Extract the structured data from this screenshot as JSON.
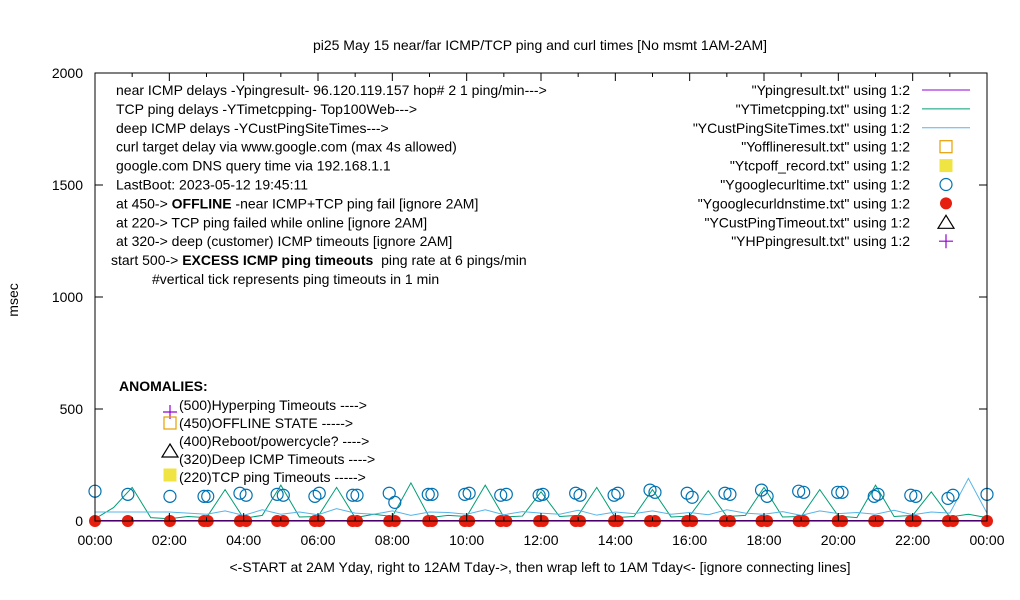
{
  "chart_data": {
    "type": "line",
    "title": "pi25 May 15  near/far ICMP/TCP ping and curl times [No msmt 1AM-2AM]",
    "xlabel": "<-START at 2AM Yday, right to 12AM Tday->, then wrap left to 1AM Tday<- [ignore connecting lines]",
    "ylabel": "msec",
    "xlim": [
      "00:00",
      "24:00"
    ],
    "ylim": [
      0,
      2000
    ],
    "x_ticks": [
      "00:00",
      "02:00",
      "04:00",
      "06:00",
      "08:00",
      "10:00",
      "12:00",
      "14:00",
      "16:00",
      "18:00",
      "20:00",
      "22:00",
      "00:00"
    ],
    "y_ticks": [
      "0",
      "500",
      "1000",
      "1500",
      "2000"
    ],
    "grid": false,
    "legend_position": "top-right",
    "notes": [
      [
        {
          "text": "near ICMP delays -Ypingresult- 96.120.119.157 hop# 2 1 ping/min--->"
        }
      ],
      [
        {
          "text": "TCP ping delays -YTimetcpping- Top100Web--->"
        }
      ],
      [
        {
          "text": "deep ICMP delays -YCustPingSiteTimes--->"
        }
      ],
      [
        {
          "text": "curl target delay via www.google.com (max 4s allowed)"
        }
      ],
      [
        {
          "text": "google.com DNS query time via 192.168.1.1"
        }
      ],
      [
        {
          "text": "LastBoot: 2023-05-12 19:45:11"
        }
      ],
      [
        {
          "text": "at 450-> "
        },
        {
          "text": "OFFLINE",
          "bold": true
        },
        {
          "text": " -near ICMP+TCP ping fail [ignore 2AM]"
        }
      ],
      [
        {
          "text": "at 220-> TCP ping failed while online [ignore 2AM]"
        }
      ],
      [
        {
          "text": "at 320-> deep (customer) ICMP timeouts [ignore 2AM]"
        }
      ],
      [
        {
          "text": "start 500-> "
        },
        {
          "text": "EXCESS ICMP ping timeouts",
          "bold": true
        },
        {
          "text": "  ping rate at 6 pings/min"
        }
      ],
      [
        {
          "text": "#vertical tick represents ping timeouts in 1 min"
        }
      ]
    ],
    "anomalies": {
      "heading": "ANOMALIES:",
      "items": [
        {
          "label": "(500)Hyperping Timeouts ---->",
          "marker": "plus",
          "color": "#9400d3"
        },
        {
          "label": "(450)OFFLINE STATE ----->",
          "marker": "open-square",
          "color": "#e69f00"
        },
        {
          "label": "(400)Reboot/powercycle? ---->",
          "marker": "none",
          "color": "#000000"
        },
        {
          "label": "(320)Deep ICMP Timeouts ---->",
          "marker": "open-triangle",
          "color": "#000000"
        },
        {
          "label": "(220)TCP ping Timeouts ----->",
          "marker": "filled-square",
          "color": "#f0e442"
        }
      ]
    },
    "legend": [
      {
        "label": "\"Ypingresult.txt\" using 1:2",
        "marker": "line",
        "color": "#9400d3"
      },
      {
        "label": "\"YTimetcpping.txt\" using 1:2",
        "marker": "line",
        "color": "#009e73"
      },
      {
        "label": "\"YCustPingSiteTimes.txt\" using 1:2",
        "marker": "line",
        "color": "#56b4e9"
      },
      {
        "label": "\"Yofflineresult.txt\" using 1:2",
        "marker": "open-square",
        "color": "#e69f00"
      },
      {
        "label": "\"Ytcpoff_record.txt\" using 1:2",
        "marker": "filled-square",
        "color": "#f0e442"
      },
      {
        "label": "\"Ygooglecurltime.txt\" using 1:2",
        "marker": "open-circle",
        "color": "#0072b2"
      },
      {
        "label": "\"Ygooglecurldnstime.txt\" using 1:2",
        "marker": "filled-circle",
        "color": "#e51e10"
      },
      {
        "label": "\"YCustPingTimeout.txt\" using 1:2",
        "marker": "open-triangle",
        "color": "#000000"
      },
      {
        "label": "\"YHPpingresult.txt\" using 1:2",
        "marker": "plus",
        "color": "#9400d3"
      }
    ],
    "line_x": [
      "00:00",
      "00:30",
      "01:00",
      "01:30",
      "02:00",
      "02:30",
      "03:00",
      "03:30",
      "04:00",
      "04:30",
      "05:00",
      "05:30",
      "06:00",
      "06:30",
      "07:00",
      "07:30",
      "08:00",
      "08:30",
      "09:00",
      "09:30",
      "10:00",
      "10:30",
      "11:00",
      "11:30",
      "12:00",
      "12:30",
      "13:00",
      "13:30",
      "14:00",
      "14:30",
      "15:00",
      "15:30",
      "16:00",
      "16:30",
      "17:00",
      "17:30",
      "18:00",
      "18:30",
      "19:00",
      "19:30",
      "20:00",
      "20:30",
      "21:00",
      "21:30",
      "22:00",
      "22:30",
      "23:00",
      "23:30",
      "24:00"
    ],
    "series": [
      {
        "file": "Ypingresult.txt",
        "color": "#9400d3",
        "values": [
          2,
          2,
          2,
          2,
          2,
          2,
          2,
          2,
          2,
          2,
          2,
          2,
          2,
          2,
          2,
          2,
          2,
          2,
          2,
          2,
          2,
          2,
          2,
          2,
          2,
          2,
          2,
          2,
          2,
          2,
          2,
          2,
          2,
          2,
          2,
          2,
          2,
          2,
          2,
          2,
          2,
          2,
          2,
          2,
          2,
          2,
          2,
          2,
          2
        ]
      },
      {
        "file": "YTimetcpping.txt",
        "color": "#009e73",
        "values": [
          10,
          60,
          150,
          15,
          10,
          20,
          15,
          140,
          12,
          25,
          160,
          18,
          20,
          150,
          15,
          30,
          20,
          170,
          15,
          25,
          20,
          160,
          18,
          22,
          130,
          20,
          25,
          150,
          15,
          20,
          140,
          18,
          22,
          135,
          20,
          25,
          150,
          18,
          20,
          140,
          22,
          15,
          160,
          20,
          25,
          130,
          18,
          30,
          15
        ]
      },
      {
        "file": "YCustPingSiteTimes.txt",
        "color": "#56b4e9",
        "values": [
          40,
          40,
          40,
          40,
          40,
          35,
          30,
          45,
          25,
          50,
          30,
          40,
          28,
          55,
          35,
          30,
          45,
          25,
          40,
          38,
          30,
          50,
          28,
          42,
          35,
          30,
          48,
          26,
          40,
          33,
          45,
          30,
          38,
          28,
          50,
          35,
          30,
          42,
          25,
          45,
          33,
          38,
          30,
          48,
          28,
          40,
          35,
          190,
          35
        ]
      }
    ],
    "curl_times": {
      "x": [
        "00:00",
        "00:53",
        "02:01",
        "02:56",
        "03:02",
        "03:54",
        "04:04",
        "04:54",
        "05:04",
        "05:55",
        "06:02",
        "06:56",
        "07:03",
        "07:55",
        "08:04",
        "08:58",
        "09:04",
        "09:57",
        "10:04",
        "10:55",
        "11:04",
        "11:57",
        "12:03",
        "12:56",
        "13:03",
        "13:58",
        "14:04",
        "14:56",
        "15:04",
        "15:56",
        "16:04",
        "16:57",
        "17:05",
        "17:56",
        "18:05",
        "18:56",
        "19:04",
        "19:59",
        "20:06",
        "20:58",
        "21:04",
        "21:57",
        "22:05",
        "22:57",
        "23:05",
        "24:00"
      ],
      "values": [
        133,
        119,
        110,
        110,
        110,
        124,
        115,
        119,
        115,
        110,
        124,
        115,
        115,
        124,
        83,
        119,
        119,
        119,
        124,
        115,
        119,
        115,
        119,
        124,
        115,
        115,
        124,
        138,
        128,
        124,
        106,
        124,
        119,
        138,
        110,
        133,
        128,
        128,
        128,
        110,
        119,
        115,
        110,
        101,
        115,
        119
      ]
    },
    "dns_times": {
      "x": [
        "00:00",
        "00:53",
        "02:01",
        "02:56",
        "03:02",
        "03:54",
        "04:04",
        "04:54",
        "05:04",
        "05:55",
        "06:02",
        "06:56",
        "07:03",
        "07:55",
        "08:04",
        "08:58",
        "09:04",
        "09:57",
        "10:04",
        "10:55",
        "11:04",
        "11:57",
        "12:03",
        "12:56",
        "13:03",
        "13:58",
        "14:04",
        "14:56",
        "15:04",
        "15:56",
        "16:04",
        "16:57",
        "17:05",
        "17:56",
        "18:05",
        "18:56",
        "19:04",
        "19:59",
        "20:06",
        "20:58",
        "21:04",
        "21:57",
        "22:05",
        "22:57",
        "23:05",
        "24:00"
      ],
      "values": [
        0,
        0,
        0,
        0,
        0,
        0,
        0,
        0,
        0,
        0,
        0,
        0,
        0,
        0,
        0,
        0,
        0,
        0,
        0,
        0,
        0,
        0,
        0,
        0,
        0,
        0,
        0,
        0,
        0,
        0,
        0,
        0,
        0,
        0,
        0,
        0,
        0,
        0,
        0,
        0,
        0,
        0,
        0,
        0,
        0,
        0
      ]
    }
  }
}
